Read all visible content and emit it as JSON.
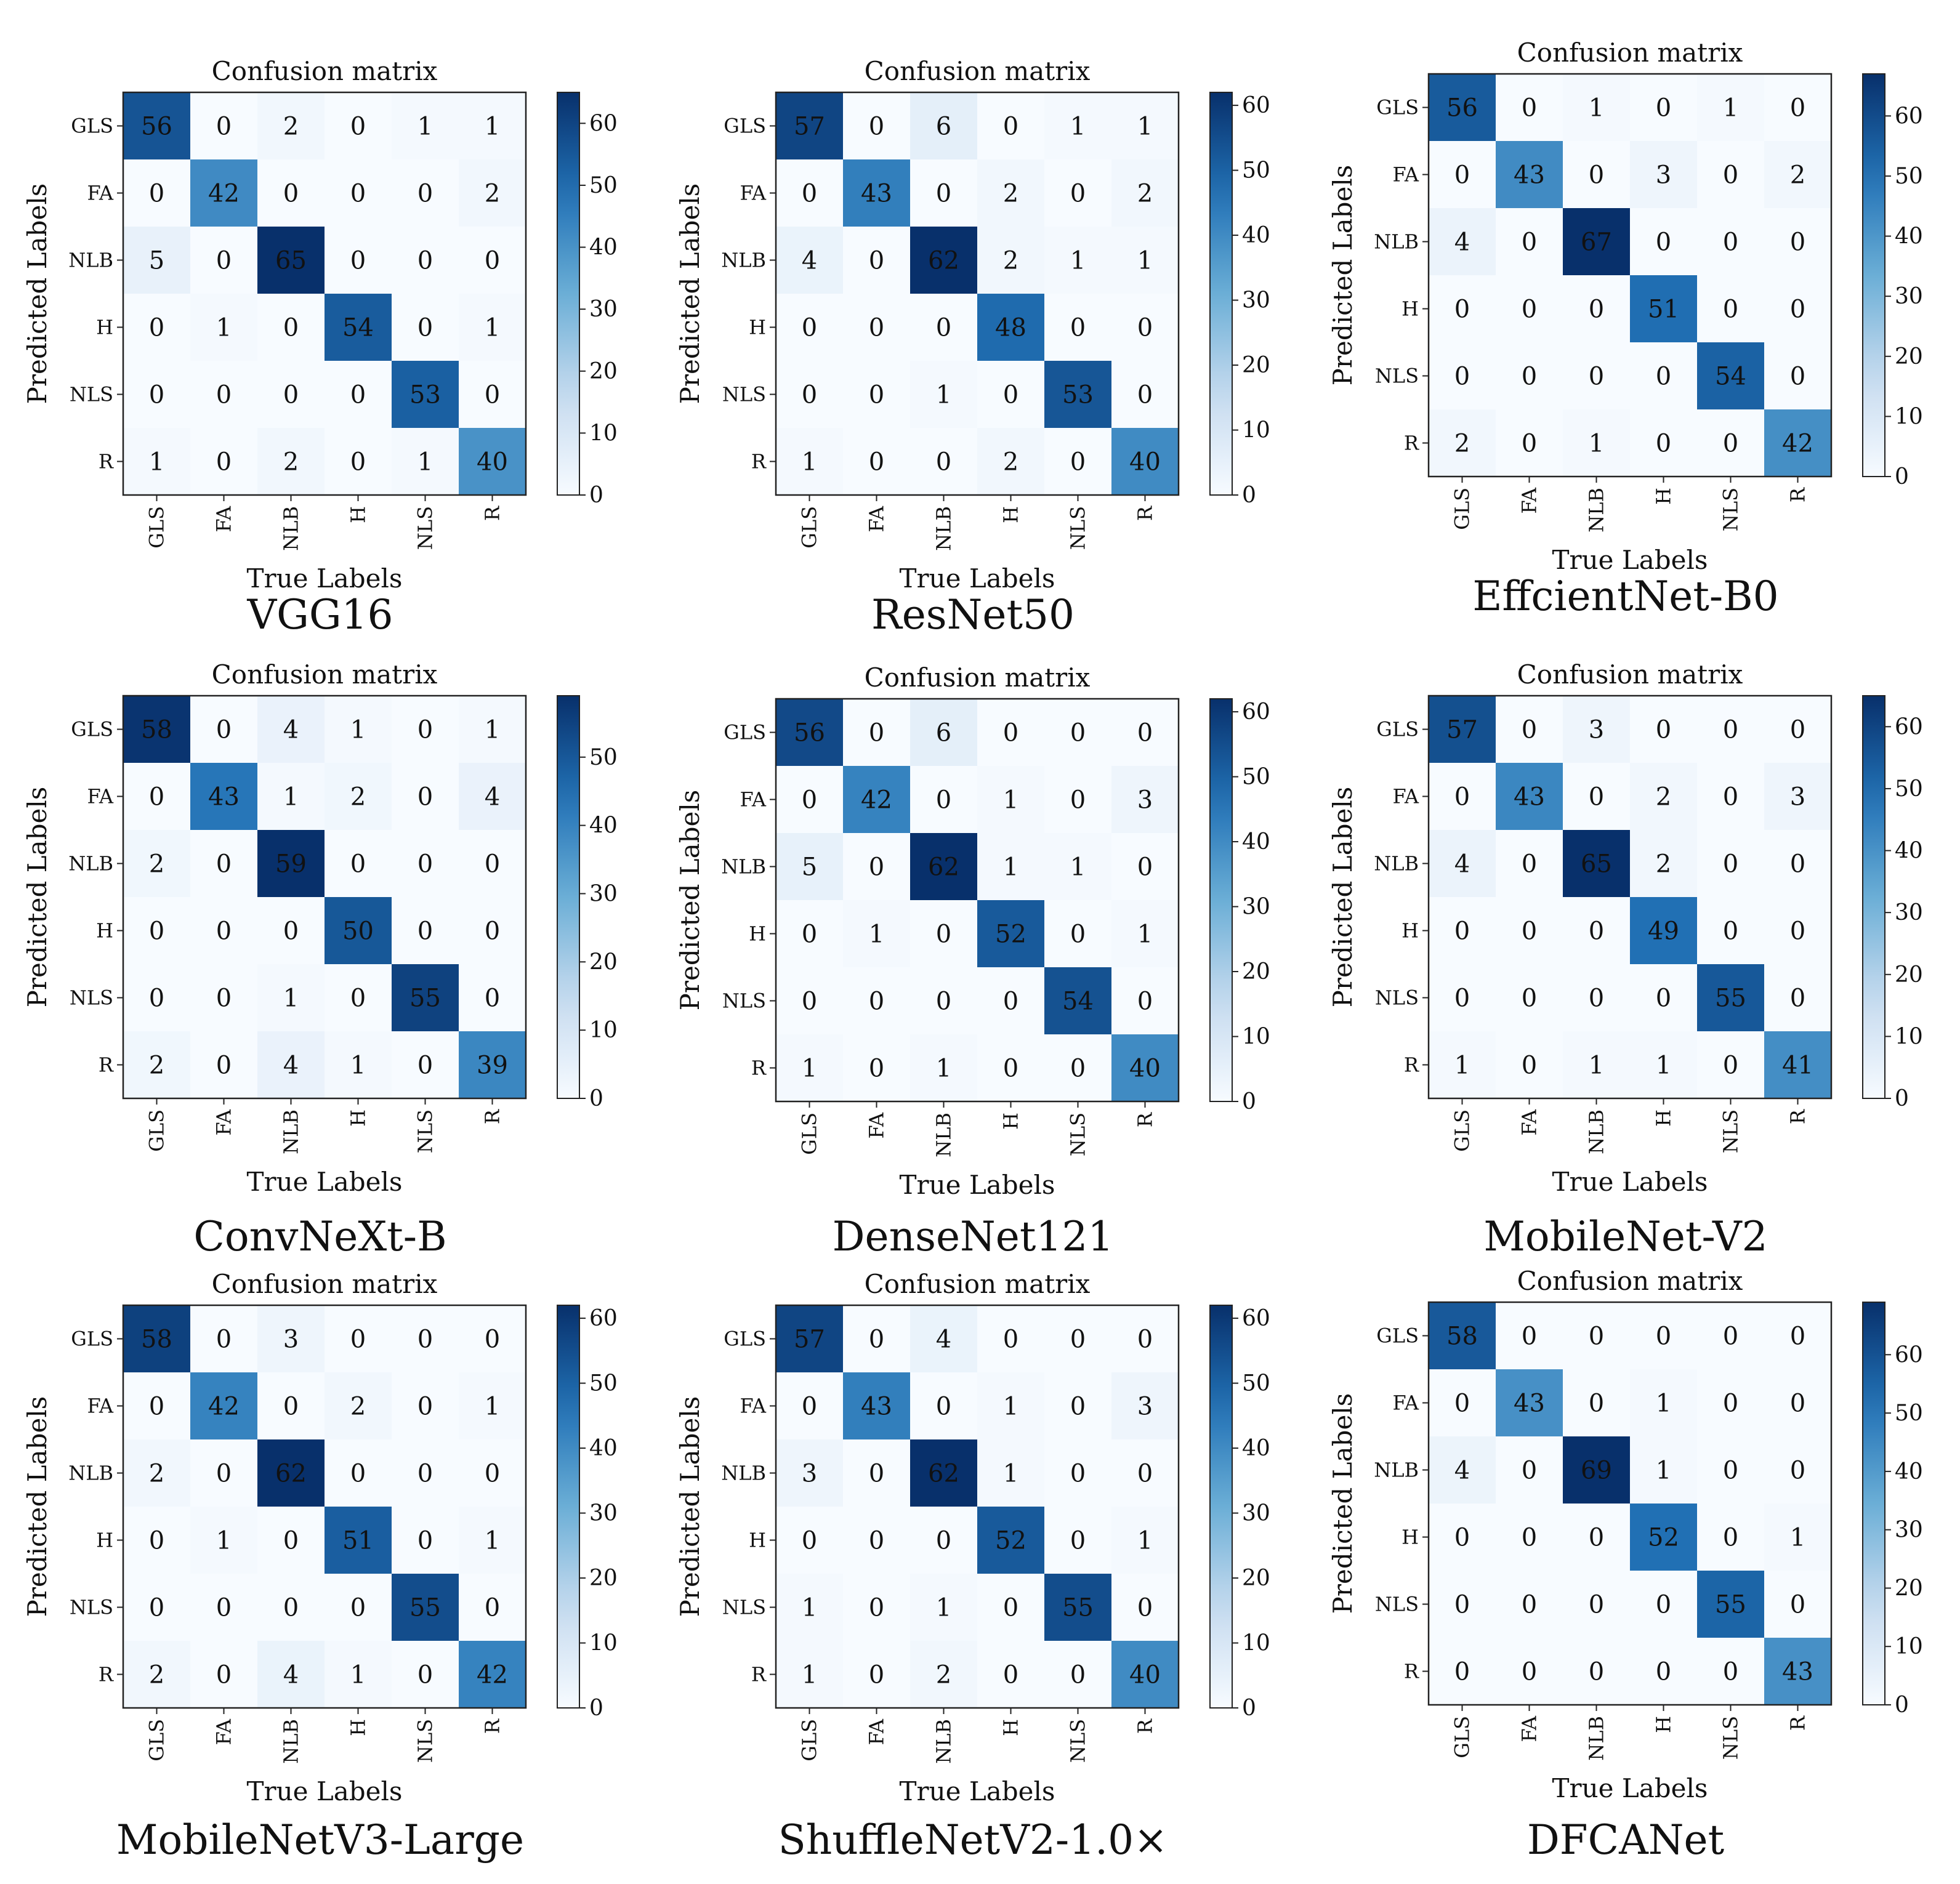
{
  "figure": {
    "class_labels": [
      "GLS",
      "FA",
      "NLB",
      "H",
      "NLS",
      "R"
    ],
    "panel_title": "Confusion matrix",
    "xlabel": "True Labels",
    "ylabel": "Predicted Labels",
    "colormap": {
      "low": "#f7fbff",
      "mid1": "#c6dbef",
      "mid2": "#6baed6",
      "mid3": "#2171b5",
      "high": "#08306b"
    }
  },
  "chart_data": [
    {
      "type": "heatmap",
      "name": "VGG16",
      "title": "Confusion matrix",
      "xlabel": "True Labels",
      "ylabel": "Predicted Labels",
      "rows": [
        "GLS",
        "FA",
        "NLB",
        "H",
        "NLS",
        "R"
      ],
      "cols": [
        "GLS",
        "FA",
        "NLB",
        "H",
        "NLS",
        "R"
      ],
      "matrix": [
        [
          56,
          0,
          2,
          0,
          1,
          1
        ],
        [
          0,
          42,
          0,
          0,
          0,
          2
        ],
        [
          5,
          0,
          65,
          0,
          0,
          0
        ],
        [
          0,
          1,
          0,
          54,
          0,
          1
        ],
        [
          0,
          0,
          0,
          0,
          53,
          0
        ],
        [
          1,
          0,
          2,
          0,
          1,
          40
        ]
      ],
      "colorbar": {
        "vmin": 0,
        "vmax": 65,
        "ticks": [
          0,
          10,
          20,
          30,
          40,
          50,
          60
        ]
      }
    },
    {
      "type": "heatmap",
      "name": "ResNet50",
      "title": "Confusion matrix",
      "xlabel": "True Labels",
      "ylabel": "Predicted Labels",
      "rows": [
        "GLS",
        "FA",
        "NLB",
        "H",
        "NLS",
        "R"
      ],
      "cols": [
        "GLS",
        "FA",
        "NLB",
        "H",
        "NLS",
        "R"
      ],
      "matrix": [
        [
          57,
          0,
          6,
          0,
          1,
          1
        ],
        [
          0,
          43,
          0,
          2,
          0,
          2
        ],
        [
          4,
          0,
          62,
          2,
          1,
          1
        ],
        [
          0,
          0,
          0,
          48,
          0,
          0
        ],
        [
          0,
          0,
          1,
          0,
          53,
          0
        ],
        [
          1,
          0,
          0,
          2,
          0,
          40
        ]
      ],
      "colorbar": {
        "vmin": 0,
        "vmax": 62,
        "ticks": [
          0,
          10,
          20,
          30,
          40,
          50,
          60
        ]
      }
    },
    {
      "type": "heatmap",
      "name": "EffcientNet-B0",
      "title": "Confusion matrix",
      "xlabel": "True Labels",
      "ylabel": "Predicted Labels",
      "rows": [
        "GLS",
        "FA",
        "NLB",
        "H",
        "NLS",
        "R"
      ],
      "cols": [
        "GLS",
        "FA",
        "NLB",
        "H",
        "NLS",
        "R"
      ],
      "matrix": [
        [
          56,
          0,
          1,
          0,
          1,
          0
        ],
        [
          0,
          43,
          0,
          3,
          0,
          2
        ],
        [
          4,
          0,
          67,
          0,
          0,
          0
        ],
        [
          0,
          0,
          0,
          51,
          0,
          0
        ],
        [
          0,
          0,
          0,
          0,
          54,
          0
        ],
        [
          2,
          0,
          1,
          0,
          0,
          42
        ]
      ],
      "colorbar": {
        "vmin": 0,
        "vmax": 67,
        "ticks": [
          0,
          10,
          20,
          30,
          40,
          50,
          60
        ]
      }
    },
    {
      "type": "heatmap",
      "name": "ConvNeXt-B",
      "title": "Confusion matrix",
      "xlabel": "True Labels",
      "ylabel": "Predicted Labels",
      "rows": [
        "GLS",
        "FA",
        "NLB",
        "H",
        "NLS",
        "R"
      ],
      "cols": [
        "GLS",
        "FA",
        "NLB",
        "H",
        "NLS",
        "R"
      ],
      "matrix": [
        [
          58,
          0,
          4,
          1,
          0,
          1
        ],
        [
          0,
          43,
          1,
          2,
          0,
          4
        ],
        [
          2,
          0,
          59,
          0,
          0,
          0
        ],
        [
          0,
          0,
          0,
          50,
          0,
          0
        ],
        [
          0,
          0,
          1,
          0,
          55,
          0
        ],
        [
          2,
          0,
          4,
          1,
          0,
          39
        ]
      ],
      "colorbar": {
        "vmin": 0,
        "vmax": 59,
        "ticks": [
          0,
          10,
          20,
          30,
          40,
          50
        ]
      }
    },
    {
      "type": "heatmap",
      "name": "DenseNet121",
      "title": "Confusion matrix",
      "xlabel": "True Labels",
      "ylabel": "Predicted Labels",
      "rows": [
        "GLS",
        "FA",
        "NLB",
        "H",
        "NLS",
        "R"
      ],
      "cols": [
        "GLS",
        "FA",
        "NLB",
        "H",
        "NLS",
        "R"
      ],
      "matrix": [
        [
          56,
          0,
          6,
          0,
          0,
          0
        ],
        [
          0,
          42,
          0,
          1,
          0,
          3
        ],
        [
          5,
          0,
          62,
          1,
          1,
          0
        ],
        [
          0,
          1,
          0,
          52,
          0,
          1
        ],
        [
          0,
          0,
          0,
          0,
          54,
          0
        ],
        [
          1,
          0,
          1,
          0,
          0,
          40
        ]
      ],
      "colorbar": {
        "vmin": 0,
        "vmax": 62,
        "ticks": [
          0,
          10,
          20,
          30,
          40,
          50,
          60
        ]
      }
    },
    {
      "type": "heatmap",
      "name": "MobileNet-V2",
      "title": "Confusion matrix",
      "xlabel": "True Labels",
      "ylabel": "Predicted Labels",
      "rows": [
        "GLS",
        "FA",
        "NLB",
        "H",
        "NLS",
        "R"
      ],
      "cols": [
        "GLS",
        "FA",
        "NLB",
        "H",
        "NLS",
        "R"
      ],
      "matrix": [
        [
          57,
          0,
          3,
          0,
          0,
          0
        ],
        [
          0,
          43,
          0,
          2,
          0,
          3
        ],
        [
          4,
          0,
          65,
          2,
          0,
          0
        ],
        [
          0,
          0,
          0,
          49,
          0,
          0
        ],
        [
          0,
          0,
          0,
          0,
          55,
          0
        ],
        [
          1,
          0,
          1,
          1,
          0,
          41
        ]
      ],
      "colorbar": {
        "vmin": 0,
        "vmax": 65,
        "ticks": [
          0,
          10,
          20,
          30,
          40,
          50,
          60
        ]
      }
    },
    {
      "type": "heatmap",
      "name": "MobileNetV3-Large",
      "title": "Confusion matrix",
      "xlabel": "True Labels",
      "ylabel": "Predicted Labels",
      "rows": [
        "GLS",
        "FA",
        "NLB",
        "H",
        "NLS",
        "R"
      ],
      "cols": [
        "GLS",
        "FA",
        "NLB",
        "H",
        "NLS",
        "R"
      ],
      "matrix": [
        [
          58,
          0,
          3,
          0,
          0,
          0
        ],
        [
          0,
          42,
          0,
          2,
          0,
          1
        ],
        [
          2,
          0,
          62,
          0,
          0,
          0
        ],
        [
          0,
          1,
          0,
          51,
          0,
          1
        ],
        [
          0,
          0,
          0,
          0,
          55,
          0
        ],
        [
          2,
          0,
          4,
          1,
          0,
          42
        ]
      ],
      "colorbar": {
        "vmin": 0,
        "vmax": 62,
        "ticks": [
          0,
          10,
          20,
          30,
          40,
          50,
          60
        ]
      }
    },
    {
      "type": "heatmap",
      "name": "ShuffleNetV2-1.0×",
      "title": "Confusion matrix",
      "xlabel": "True Labels",
      "ylabel": "Predicted Labels",
      "rows": [
        "GLS",
        "FA",
        "NLB",
        "H",
        "NLS",
        "R"
      ],
      "cols": [
        "GLS",
        "FA",
        "NLB",
        "H",
        "NLS",
        "R"
      ],
      "matrix": [
        [
          57,
          0,
          4,
          0,
          0,
          0
        ],
        [
          0,
          43,
          0,
          1,
          0,
          3
        ],
        [
          3,
          0,
          62,
          1,
          0,
          0
        ],
        [
          0,
          0,
          0,
          52,
          0,
          1
        ],
        [
          1,
          0,
          1,
          0,
          55,
          0
        ],
        [
          1,
          0,
          2,
          0,
          0,
          40
        ]
      ],
      "colorbar": {
        "vmin": 0,
        "vmax": 62,
        "ticks": [
          0,
          10,
          20,
          30,
          40,
          50,
          60
        ]
      }
    },
    {
      "type": "heatmap",
      "name": "DFCANet",
      "title": "Confusion matrix",
      "xlabel": "True Labels",
      "ylabel": "Predicted Labels",
      "rows": [
        "GLS",
        "FA",
        "NLB",
        "H",
        "NLS",
        "R"
      ],
      "cols": [
        "GLS",
        "FA",
        "NLB",
        "H",
        "NLS",
        "R"
      ],
      "matrix": [
        [
          58,
          0,
          0,
          0,
          0,
          0
        ],
        [
          0,
          43,
          0,
          1,
          0,
          0
        ],
        [
          4,
          0,
          69,
          1,
          0,
          0
        ],
        [
          0,
          0,
          0,
          52,
          0,
          1
        ],
        [
          0,
          0,
          0,
          0,
          55,
          0
        ],
        [
          0,
          0,
          0,
          0,
          0,
          43
        ]
      ],
      "colorbar": {
        "vmin": 0,
        "vmax": 69,
        "ticks": [
          0,
          10,
          20,
          30,
          40,
          50,
          60
        ]
      }
    }
  ]
}
